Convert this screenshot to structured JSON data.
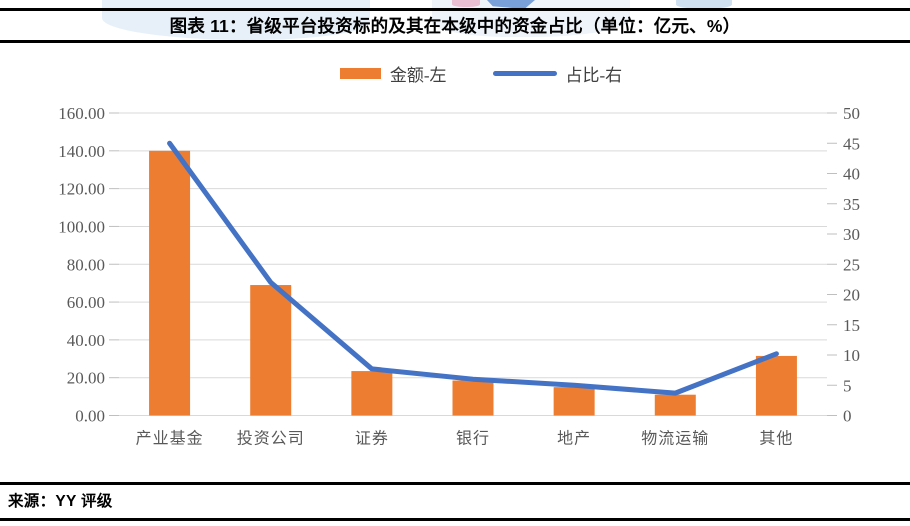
{
  "header": {
    "title": "图表 11：省级平台投资标的及其在本级中的资金占比（单位：亿元、%）"
  },
  "footer": {
    "source": "来源：YY 评级"
  },
  "chart_data": {
    "type": "bar",
    "subtype": "bar-line-combo",
    "title": "省级平台投资标的及其在本级中的资金占比",
    "units": "亿元、%",
    "categories": [
      "产业基金",
      "投资公司",
      "证券",
      "银行",
      "地产",
      "物流运输",
      "其他"
    ],
    "series": [
      {
        "name": "金额-左",
        "type": "bar",
        "axis": "left",
        "color": "#ED7D31",
        "values": [
          140,
          69,
          23.5,
          18.5,
          15,
          11,
          31.5
        ]
      },
      {
        "name": "占比-右",
        "type": "line",
        "axis": "right",
        "color": "#4472C4",
        "values": [
          45,
          22,
          7.7,
          6,
          5,
          3.7,
          10.2
        ]
      }
    ],
    "left_axis": {
      "min": 0,
      "max": 160,
      "step": 20,
      "tick_labels": [
        "0.00",
        "20.00",
        "40.00",
        "60.00",
        "80.00",
        "100.00",
        "120.00",
        "140.00",
        "160.00"
      ]
    },
    "right_axis": {
      "min": 0,
      "max": 50,
      "step": 5,
      "tick_labels": [
        "0",
        "5",
        "10",
        "15",
        "20",
        "25",
        "30",
        "35",
        "40",
        "45",
        "50"
      ]
    },
    "grid": true,
    "legend_position": "top-center",
    "colors": {
      "grid": "#D9D9D9",
      "tick": "#BFBFBF",
      "axis_text": "#595959",
      "rule": "#000000"
    }
  }
}
